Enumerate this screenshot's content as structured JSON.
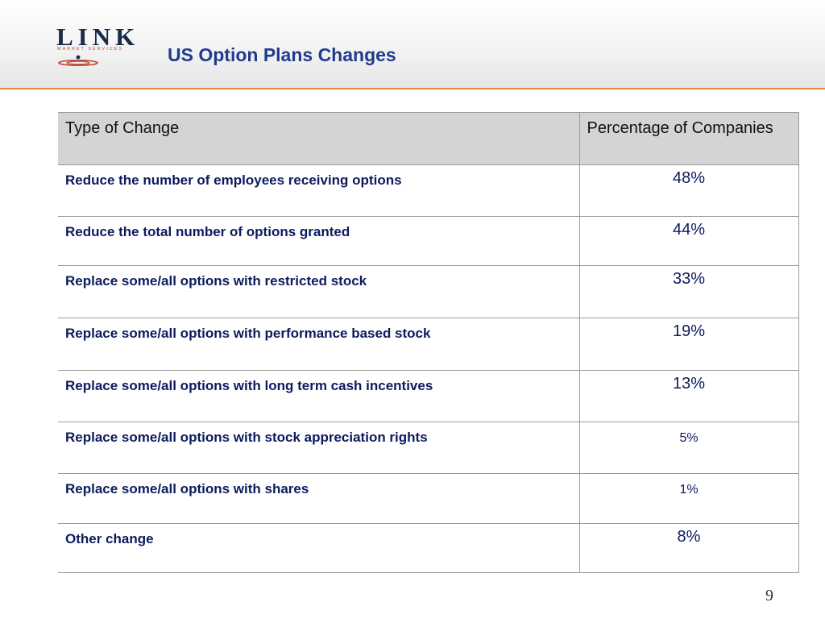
{
  "header": {
    "logo_word": "LINK",
    "logo_sub": "MARKET SERVICES",
    "title": "US Option Plans Changes"
  },
  "table": {
    "columns": [
      "Type of Change",
      "Percentage of Companies"
    ],
    "rows": [
      {
        "type": "Reduce the number of employees receiving options",
        "pct": "48%"
      },
      {
        "type": "Reduce the total number of options granted",
        "pct": "44%"
      },
      {
        "type": "Replace some/all options with restricted stock",
        "pct": "33%"
      },
      {
        "type": "Replace some/all options with performance based stock",
        "pct": "19%"
      },
      {
        "type": "Replace some/all options with long term cash incentives",
        "pct": "13%"
      },
      {
        "type": "Replace some/all options with stock appreciation rights",
        "pct": "5%"
      },
      {
        "type": "Replace some/all options with shares",
        "pct": "1%"
      },
      {
        "type": "Other change",
        "pct": "8%"
      }
    ]
  },
  "footer": {
    "page_number": "9"
  },
  "colors": {
    "title": "#1f3b8f",
    "accent_rule": "#e8894a",
    "header_row": "#d4d4d4",
    "body_text": "#0d1b5e"
  }
}
